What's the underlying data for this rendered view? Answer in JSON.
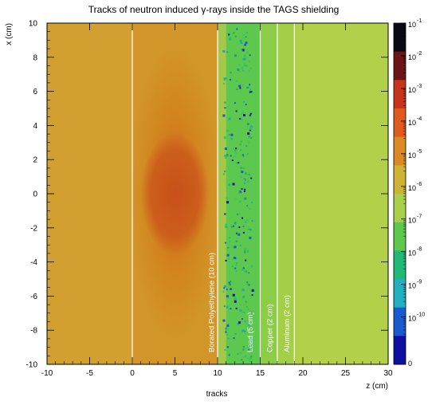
{
  "chart_data": {
    "type": "heatmap",
    "title": "Tracks of neutron induced γ-rays inside the TAGS shielding",
    "xlabel": "z (cm)",
    "ylabel": "x (cm)",
    "bottom_label": "tracks",
    "xlim": [
      -10,
      30
    ],
    "ylim": [
      -10,
      10
    ],
    "x_ticks": [
      "-10",
      "-5",
      "0",
      "5",
      "10",
      "15",
      "20",
      "25",
      "30"
    ],
    "y_ticks": [
      "-10",
      "-8",
      "-6",
      "-4",
      "-2",
      "0",
      "2",
      "4",
      "6",
      "8",
      "10"
    ],
    "color_scale": {
      "type": "log",
      "ticks": [
        {
          "base": "10",
          "exp": "-1"
        },
        {
          "base": "10",
          "exp": "-2"
        },
        {
          "base": "10",
          "exp": "-3"
        },
        {
          "base": "10",
          "exp": "-4"
        },
        {
          "base": "10",
          "exp": "-5"
        },
        {
          "base": "10",
          "exp": "-6"
        },
        {
          "base": "10",
          "exp": "-7"
        },
        {
          "base": "10",
          "exp": "-8"
        },
        {
          "base": "10",
          "exp": "-9"
        },
        {
          "base": "10",
          "exp": "-10"
        }
      ],
      "bottom_label": "0",
      "colors": [
        "#0a0a14",
        "#6b1616",
        "#c8341a",
        "#e05a1c",
        "#d98a22",
        "#cdb434",
        "#a8d04a",
        "#5cc84c",
        "#22b878",
        "#20b0c0",
        "#1a5ad0",
        "#1010a0"
      ]
    },
    "layer_boundaries_z": [
      0,
      10,
      15,
      17,
      19
    ],
    "layers": [
      {
        "label": "Borated Polyethylene (10 cm)",
        "z_start": 0,
        "z_end": 10
      },
      {
        "label": "Lead (5 cm)",
        "z_start": 10,
        "z_end": 15
      },
      {
        "label": "Copper (2 cm)",
        "z_start": 15,
        "z_end": 17
      },
      {
        "label": "Aluminum (2 cm)",
        "z_start": 17,
        "z_end": 19
      }
    ],
    "hotspot_center": {
      "z": 5,
      "x": 0
    },
    "grid": false,
    "legend": "right colorbar"
  }
}
